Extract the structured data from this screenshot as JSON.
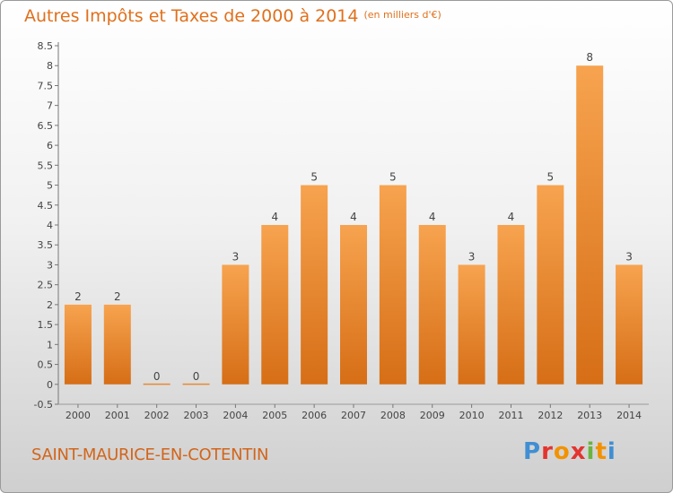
{
  "title": "Autres Impôts et Taxes de 2000 à 2014",
  "unit_note": "(en milliers d'€)",
  "commune": "SAINT-MAURICE-EN-COTENTIN",
  "brand": {
    "letters": [
      "P",
      "r",
      "o",
      "x",
      "i",
      "t",
      "i"
    ],
    "colors": [
      "#3f8fd2",
      "#e3342f",
      "#f39200",
      "#e3342f",
      "#6cb33f",
      "#f39200",
      "#3f8fd2"
    ]
  },
  "colors": {
    "accent": "#e0701c",
    "bar_top": "#f7a34f",
    "bar_bottom": "#d66e16",
    "commune": "#d2651a"
  },
  "chart_data": {
    "type": "bar",
    "categories": [
      "2000",
      "2001",
      "2002",
      "2003",
      "2004",
      "2005",
      "2006",
      "2007",
      "2008",
      "2009",
      "2010",
      "2011",
      "2012",
      "2013",
      "2014"
    ],
    "values": [
      2,
      2,
      0,
      0,
      3,
      4,
      5,
      4,
      5,
      4,
      3,
      4,
      5,
      8,
      3
    ],
    "ylim": [
      -0.5,
      8.5
    ],
    "yticks": [
      "8.5",
      "8",
      "7.5",
      "7",
      "6.5",
      "6",
      "5.5",
      "5",
      "4.5",
      "4",
      "3.5",
      "3",
      "2.5",
      "2",
      "1.5",
      "1",
      "0.5",
      "0",
      "-0.5"
    ],
    "grid": false
  }
}
